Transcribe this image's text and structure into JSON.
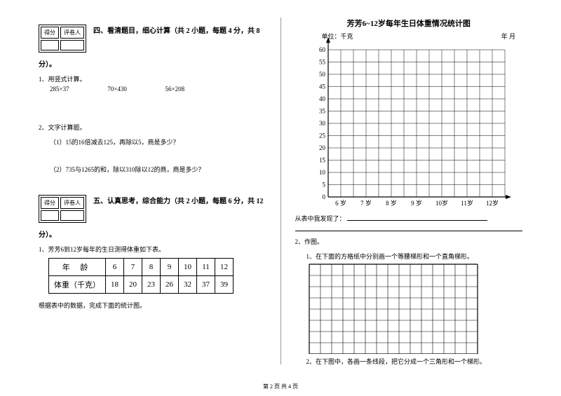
{
  "scorebox": {
    "h1": "得分",
    "h2": "评卷人"
  },
  "section4": {
    "title": "四、看清题目，细心计算（共 2 小题，每题 4 分，共 8",
    "title_continue": "分）。",
    "q1": "1、用竖式计算。",
    "calc": [
      "285×37",
      "70×430",
      "56×208"
    ],
    "q2": "2、文字计算题。",
    "q2_1": "（1）15的16倍减去125，再除以5，商是多少？",
    "q2_2": "（2）735与1265的和，除以310除以12的商，商是多少？"
  },
  "section5": {
    "title": "五、认真思考，综合能力（共 2 小题，每题 6 分，共 12",
    "title_continue": "分）。",
    "q1": "1、芳芳6到12岁每年的生日测得体重如下表。",
    "table": {
      "r1_label": "年    龄",
      "r2_label": "体重（千克）",
      "ages": [
        "6",
        "7",
        "8",
        "9",
        "10",
        "11",
        "12"
      ],
      "weights": [
        "18",
        "20",
        "23",
        "26",
        "32",
        "37",
        "39"
      ]
    },
    "note": "根据表中的数据，完成下面的统计图。"
  },
  "chart": {
    "title": "芳芳6~12岁每年生日体重情况统计图",
    "unit": "单位：千克",
    "date": "年    月",
    "y_labels": [
      "60",
      "55",
      "50",
      "45",
      "40",
      "35",
      "30",
      "25",
      "20",
      "15",
      "10",
      "5",
      "0"
    ],
    "x_labels": [
      "6 岁",
      "7 岁",
      "8 岁",
      "9 岁",
      "10岁",
      "11岁",
      "12岁"
    ],
    "discover": "从表中我发现了："
  },
  "q2": {
    "title": "2、作图。",
    "sub1": "1、在下面的方格纸中分别画一个等腰梯形和一个直角梯形。",
    "sub2": "2、在下图中，各画一条线段，把它分成一个三角形和一个梯形。"
  },
  "footer": "第 2 页  共 4 页"
}
